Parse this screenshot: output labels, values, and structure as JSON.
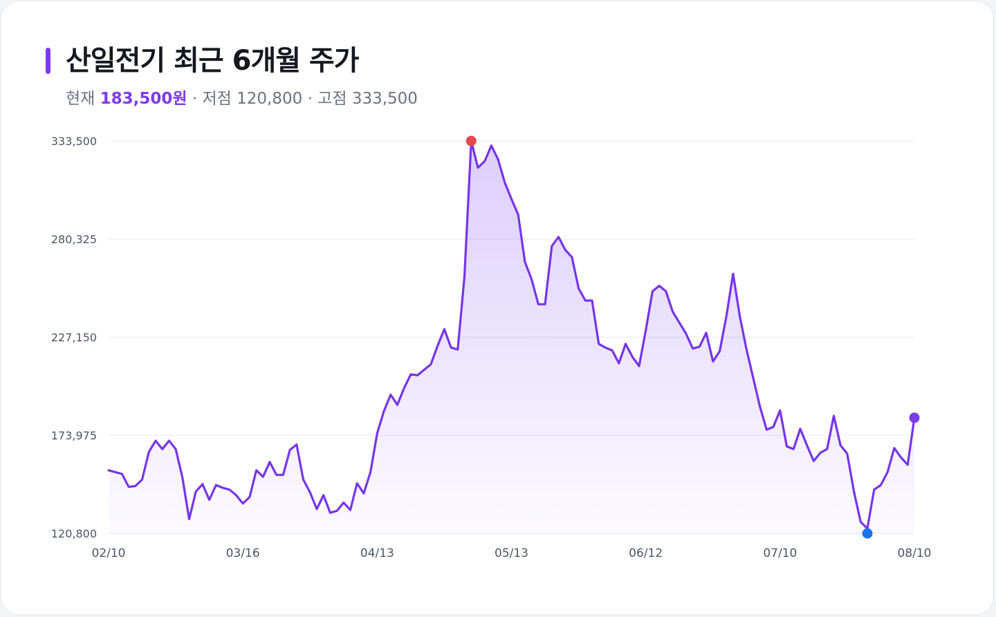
{
  "header": {
    "title": "산일전기 최근 6개월 주가",
    "current_label": "현재",
    "current_price": "183,500원",
    "low_text": "· 저점 120,800",
    "high_text": "· 고점 333,500"
  },
  "colors": {
    "accent": "#7c3aed",
    "line": "#7634ea",
    "high_marker": "#e5484d",
    "low_marker": "#1f73e8",
    "last_marker": "#7c3aed",
    "grid": "#e5e7eb",
    "title": "#16181f",
    "muted": "#6b7280"
  },
  "chart_data": {
    "type": "area",
    "ylim": [
      120800,
      333500
    ],
    "yticks": [
      120800,
      173975,
      227150,
      280325,
      333500
    ],
    "ytick_labels": [
      "120,800",
      "173,975",
      "227,150",
      "280,325",
      "333,500"
    ],
    "xlim": [
      0,
      120
    ],
    "xticks": [
      0,
      20,
      40,
      60,
      80,
      100,
      120
    ],
    "xtick_labels": [
      "02/10",
      "03/16",
      "04/13",
      "05/13",
      "06/12",
      "07/10",
      "08/10"
    ],
    "grid": true,
    "legend": "none",
    "markers": {
      "high": {
        "x": 54,
        "value": 333500
      },
      "low": {
        "x": 113,
        "value": 120800
      },
      "last": {
        "x": 120,
        "value": 183500
      }
    },
    "series": [
      {
        "values": [
          155000,
          154000,
          153000,
          146000,
          146500,
          150000,
          165000,
          171000,
          166500,
          171000,
          166500,
          151000,
          128500,
          143500,
          147500,
          139000,
          147000,
          145500,
          144500,
          141500,
          137000,
          140500,
          155000,
          151500,
          159500,
          152500,
          152500,
          166000,
          169000,
          150000,
          143000,
          134000,
          141500,
          132000,
          133000,
          137500,
          133500,
          148000,
          142500,
          154000,
          175000,
          187000,
          196000,
          190500,
          199500,
          207000,
          206500,
          209500,
          212500,
          222500,
          231500,
          221500,
          220500,
          260000,
          333500,
          319000,
          322500,
          331000,
          323500,
          311000,
          302000,
          293500,
          268000,
          258500,
          245000,
          245000,
          276500,
          281500,
          274500,
          270500,
          253500,
          247000,
          247000,
          223500,
          221500,
          220000,
          213000,
          223500,
          216500,
          211500,
          231000,
          252000,
          255000,
          252000,
          241000,
          235000,
          229000,
          221000,
          222000,
          229500,
          214000,
          219500,
          238500,
          261500,
          238500,
          220500,
          205000,
          189500,
          177000,
          178500,
          187500,
          168000,
          166500,
          177500,
          168500,
          160000,
          164500,
          166500,
          184500,
          168500,
          164000,
          143500,
          127000,
          123500,
          144500,
          147000,
          154000,
          167000,
          162000,
          158000,
          183500
        ]
      }
    ]
  }
}
